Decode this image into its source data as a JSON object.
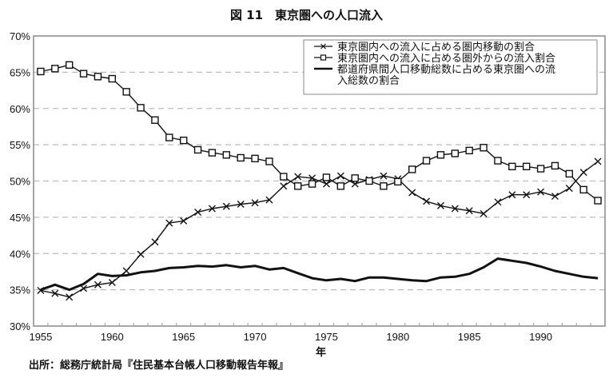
{
  "title": "図 11　東京圏への人口流入",
  "source": "出所：総務庁統計局『住民基本台帳人口移動報告年報』",
  "chart_data": {
    "type": "line",
    "title": "図 11　東京圏への人口流入",
    "xlabel": "年",
    "ylabel": "",
    "ylim": [
      30,
      70
    ],
    "y_ticks": [
      "30%",
      "35%",
      "40%",
      "45%",
      "50%",
      "55%",
      "60%",
      "65%",
      "70%"
    ],
    "x_tick_labels": [
      "1955",
      "1960",
      "1965",
      "1970",
      "1975",
      "1980",
      "1985",
      "1990"
    ],
    "grid": "horizontal dashed",
    "legend_position": "upper right",
    "x": [
      1955,
      1956,
      1957,
      1958,
      1959,
      1960,
      1961,
      1962,
      1963,
      1964,
      1965,
      1966,
      1967,
      1968,
      1969,
      1970,
      1971,
      1972,
      1973,
      1974,
      1975,
      1976,
      1977,
      1978,
      1979,
      1980,
      1981,
      1982,
      1983,
      1984,
      1985,
      1986,
      1987,
      1988,
      1989,
      1990,
      1991,
      1992,
      1993,
      1994
    ],
    "series": [
      {
        "name": "東京圏内への流入に占める圏内移動の割合",
        "marker": "x",
        "values": [
          34.9,
          34.5,
          34.0,
          35.2,
          35.7,
          36.0,
          37.6,
          39.9,
          41.6,
          44.2,
          44.5,
          45.7,
          46.2,
          46.5,
          46.8,
          47.0,
          47.4,
          49.3,
          50.6,
          50.4,
          49.6,
          50.7,
          49.6,
          50.2,
          50.7,
          50.3,
          48.4,
          47.2,
          46.6,
          46.2,
          45.9,
          45.5,
          47.1,
          48.1,
          48.1,
          48.5,
          47.9,
          49.0,
          51.2,
          52.7
        ]
      },
      {
        "name": "東京圏内への流入に占める圏外からの流入割合",
        "marker": "square",
        "values": [
          65.1,
          65.5,
          66.0,
          64.8,
          64.4,
          64.1,
          62.3,
          60.1,
          58.4,
          56.0,
          55.6,
          54.3,
          53.9,
          53.6,
          53.2,
          53.1,
          52.7,
          50.6,
          49.3,
          49.6,
          50.5,
          49.3,
          50.4,
          50.0,
          49.3,
          49.9,
          51.6,
          52.8,
          53.6,
          53.8,
          54.2,
          54.6,
          52.8,
          52.0,
          52.0,
          51.7,
          52.1,
          51.0,
          48.8,
          47.3
        ]
      },
      {
        "name": "都道府県間人口移動総数に占める東京圏への流入総数の割合",
        "marker": "none",
        "line_width": "thick",
        "values": [
          35.0,
          35.7,
          35.0,
          35.8,
          37.2,
          36.9,
          37.0,
          37.4,
          37.6,
          38.0,
          38.1,
          38.3,
          38.2,
          38.4,
          38.1,
          38.3,
          37.8,
          38.0,
          37.3,
          36.6,
          36.3,
          36.5,
          36.2,
          36.7,
          36.7,
          36.5,
          36.3,
          36.2,
          36.7,
          36.8,
          37.2,
          38.1,
          39.3,
          39.0,
          38.7,
          38.2,
          37.6,
          37.2,
          36.8,
          36.6
        ]
      }
    ],
    "legend": [
      {
        "label_lines": [
          "東京圏内への流入に占める圏内移動の割合"
        ]
      },
      {
        "label_lines": [
          "東京圏内への流入に占める圏外からの流入割合"
        ]
      },
      {
        "label_lines": [
          "都道府県間人口移動総数に占める東京圏への流",
          "入総数の割合"
        ]
      }
    ]
  }
}
